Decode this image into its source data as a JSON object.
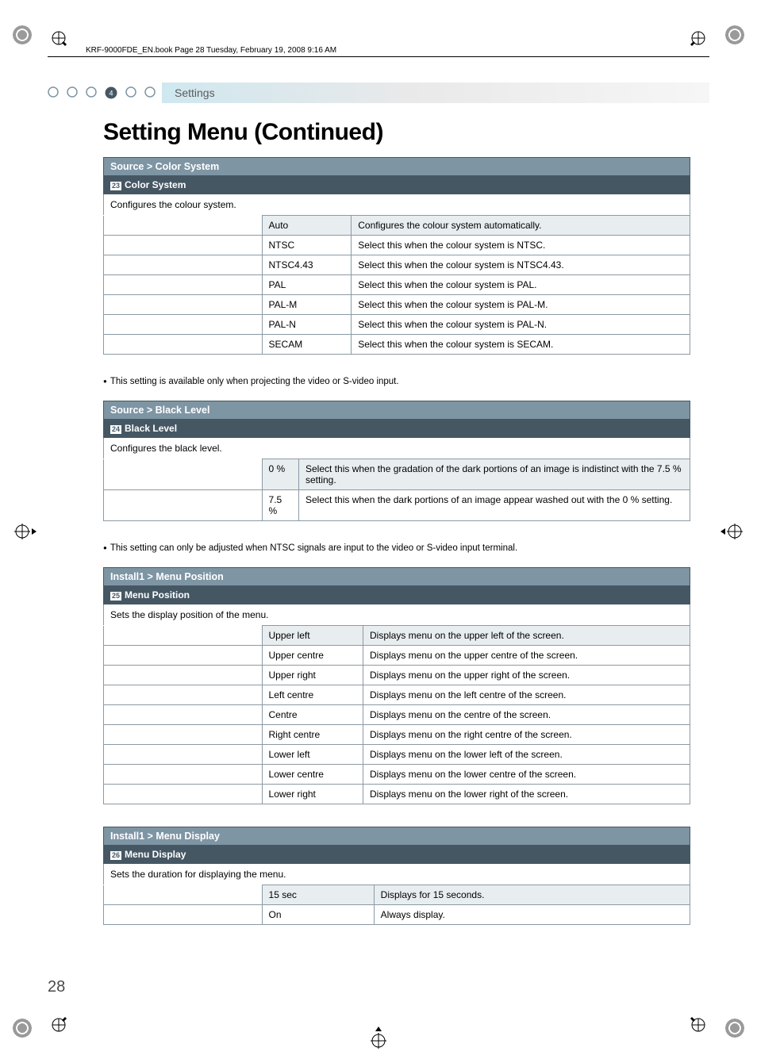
{
  "header": {
    "book_meta": "KRF-9000FDE_EN.book  Page 28  Tuesday, February 19, 2008  9:16 AM"
  },
  "tab": {
    "number": "4",
    "label": "Settings"
  },
  "title": "Setting Menu (Continued)",
  "colors": {
    "section_head_bg": "#7e95a4",
    "section_sub_bg": "#465764",
    "highlight_bg": "#e8edf0",
    "border": "#8b9aa5"
  },
  "sections": [
    {
      "breadcrumb": "Source > Color System",
      "sub_num": "23",
      "sub_label": "Color System",
      "desc": "Configures the colour system.",
      "options": [
        {
          "name": "Auto",
          "desc": "Configures the colour system automatically.",
          "highlight": true
        },
        {
          "name": "NTSC",
          "desc": "Select this when the colour system is NTSC."
        },
        {
          "name": "NTSC4.43",
          "desc": "Select this when the colour system is NTSC4.43."
        },
        {
          "name": "PAL",
          "desc": "Select this when the colour system is PAL."
        },
        {
          "name": "PAL-M",
          "desc": "Select this when the colour system is PAL-M."
        },
        {
          "name": "PAL-N",
          "desc": "Select this when the colour system is PAL-N."
        },
        {
          "name": "SECAM",
          "desc": "Select this when the colour system is SECAM."
        }
      ],
      "note": "This setting is available only when projecting the video or S-video input."
    },
    {
      "breadcrumb": "Source > Black Level",
      "sub_num": "24",
      "sub_label": "Black Level",
      "desc": "Configures the black level.",
      "options": [
        {
          "name": "0 %",
          "desc": "Select this when the gradation of the dark portions of an image is indistinct with the 7.5 % setting.",
          "highlight": true
        },
        {
          "name": "7.5 %",
          "desc": "Select this when the dark portions of an image appear washed out with the 0 % setting."
        }
      ],
      "note": "This setting can only be adjusted when NTSC signals are input to the video or S-video input terminal."
    },
    {
      "breadcrumb": "Install1 > Menu Position",
      "sub_num": "25",
      "sub_label": "Menu Position",
      "desc": "Sets the display position of the menu.",
      "options": [
        {
          "name": "Upper left",
          "desc": "Displays menu on the upper left of the screen.",
          "highlight": true
        },
        {
          "name": "Upper centre",
          "desc": "Displays menu on the upper centre of the screen."
        },
        {
          "name": "Upper right",
          "desc": "Displays menu on the upper right of the screen."
        },
        {
          "name": "Left centre",
          "desc": "Displays menu on the left centre of the screen."
        },
        {
          "name": "Centre",
          "desc": "Displays menu on the centre of the screen."
        },
        {
          "name": "Right centre",
          "desc": "Displays menu on the right centre of the screen."
        },
        {
          "name": "Lower left",
          "desc": "Displays menu on the lower left of the screen."
        },
        {
          "name": "Lower centre",
          "desc": "Displays menu on the lower centre of the screen."
        },
        {
          "name": "Lower right",
          "desc": "Displays menu on the lower right of the screen."
        }
      ]
    },
    {
      "breadcrumb": "Install1 > Menu Display",
      "sub_num": "26",
      "sub_label": "Menu Display",
      "desc": "Sets the duration for displaying the menu.",
      "options": [
        {
          "name": "15 sec",
          "desc": "Displays for 15 seconds.",
          "highlight": true
        },
        {
          "name": "On",
          "desc": "Always display."
        }
      ]
    }
  ],
  "page_number": "28"
}
